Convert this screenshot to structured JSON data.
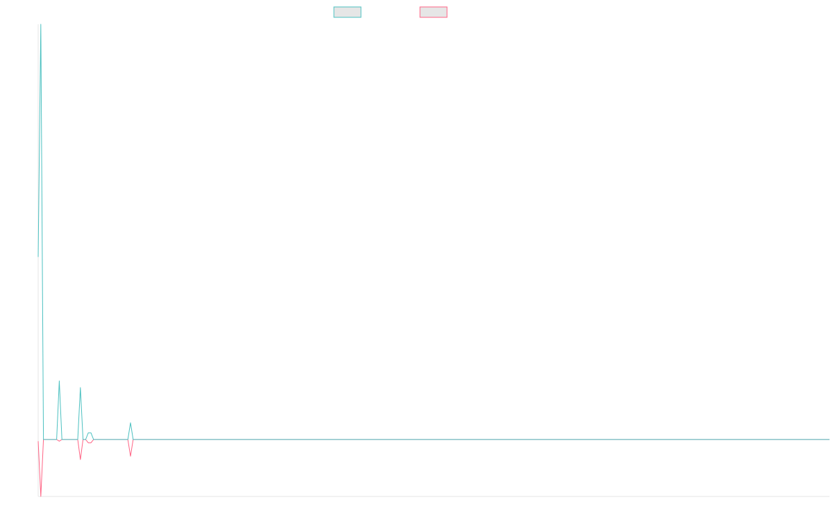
{
  "colors": {
    "series_1": "#4bc0c0",
    "series_2": "#ff6384",
    "legend_fill": "#e6e6e6",
    "axis": "#e6e6e6"
  },
  "chart_data": {
    "type": "line",
    "title": "",
    "xlabel": "",
    "ylabel": "",
    "legend": {
      "position": "top-center"
    },
    "grid": false,
    "x_count": 100,
    "ylim": [
      -3.4,
      24.8
    ],
    "series": [
      {
        "values": [
          10.9,
          24.8,
          0.0,
          0.0,
          0.0,
          0.0,
          0.0,
          0.0,
          3.5,
          0.0,
          0.0,
          0.0,
          0.0,
          0.0,
          0.0,
          0.0,
          3.1,
          0.0,
          0.0,
          0.4,
          0.4,
          0.0,
          0.0,
          0.0,
          0.0,
          0.0,
          0.0,
          0.0,
          0.0,
          0.0,
          0.0,
          0.0,
          0.0,
          0.0,
          0.0,
          1.0,
          0.0,
          0.0,
          0.0,
          0.0,
          0.0,
          0.0,
          0.0,
          0.0,
          0.0,
          0.0,
          0.0,
          0.0,
          0.0,
          0.0,
          0.0,
          0.0,
          0.0,
          0.0,
          0.0,
          0.0,
          0.0,
          0.0,
          0.0,
          0.0,
          0.0,
          0.0,
          0.0,
          0.0,
          0.0,
          0.0,
          0.0,
          0.0,
          0.0,
          0.0,
          0.0,
          0.0,
          0.0,
          0.0,
          0.0,
          0.0,
          0.0,
          0.0,
          0.0,
          0.0,
          0.0,
          0.0,
          0.0,
          0.0,
          0.0,
          0.0,
          0.0,
          0.0,
          0.0,
          0.0,
          0.0,
          0.0,
          0.0,
          0.0,
          0.0,
          0.0,
          0.0,
          0.0,
          0.0,
          0.0
        ]
      },
      {
        "values": [
          -0.1,
          -3.4,
          0.0,
          0.0,
          0.0,
          0.0,
          0.0,
          0.0,
          -0.1,
          0.0,
          0.0,
          0.0,
          0.0,
          0.0,
          0.0,
          0.0,
          -1.2,
          0.0,
          0.0,
          -0.2,
          -0.2,
          0.0,
          0.0,
          0.0,
          0.0,
          0.0,
          0.0,
          0.0,
          0.0,
          0.0,
          0.0,
          0.0,
          0.0,
          0.0,
          0.0,
          -1.0,
          0.0,
          0.0,
          0.0,
          0.0,
          0.0,
          0.0,
          0.0,
          0.0,
          0.0,
          0.0,
          0.0,
          0.0,
          0.0,
          0.0,
          0.0,
          0.0,
          0.0,
          0.0,
          0.0,
          0.0,
          0.0,
          0.0,
          0.0,
          0.0,
          0.0,
          0.0,
          0.0,
          0.0,
          0.0,
          0.0,
          0.0,
          0.0,
          0.0,
          0.0,
          0.0,
          0.0,
          0.0,
          0.0,
          0.0,
          0.0,
          0.0,
          0.0,
          0.0,
          0.0,
          0.0,
          0.0,
          0.0,
          0.0,
          0.0,
          0.0,
          0.0,
          0.0,
          0.0,
          0.0,
          0.0,
          0.0,
          0.0,
          0.0,
          0.0,
          0.0,
          0.0,
          0.0,
          0.0,
          0.0
        ]
      }
    ]
  }
}
